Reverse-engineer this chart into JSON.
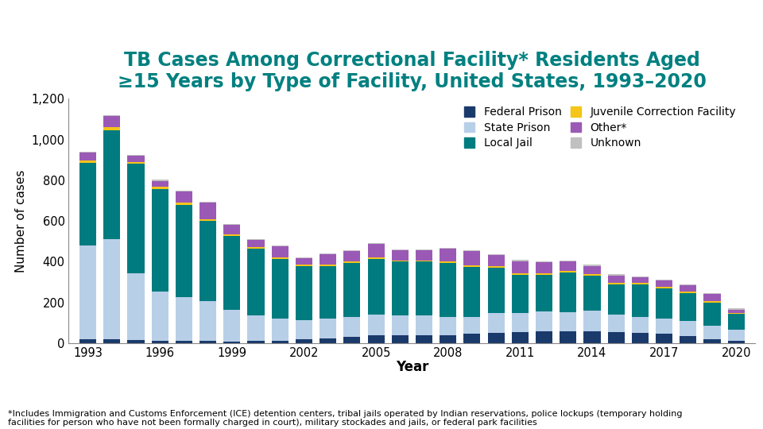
{
  "years": [
    1993,
    1994,
    1995,
    1996,
    1997,
    1998,
    1999,
    2000,
    2001,
    2002,
    2003,
    2004,
    2005,
    2006,
    2007,
    2008,
    2009,
    2010,
    2011,
    2012,
    2013,
    2014,
    2015,
    2016,
    2017,
    2018,
    2019,
    2020
  ],
  "federal_prison": [
    20,
    20,
    15,
    12,
    10,
    10,
    8,
    10,
    10,
    20,
    25,
    30,
    40,
    40,
    40,
    40,
    45,
    50,
    55,
    60,
    58,
    60,
    55,
    50,
    45,
    35,
    20,
    10
  ],
  "state_prison": [
    460,
    490,
    330,
    240,
    215,
    195,
    155,
    125,
    110,
    95,
    95,
    100,
    100,
    95,
    95,
    90,
    85,
    100,
    95,
    95,
    95,
    100,
    85,
    80,
    75,
    75,
    65,
    55
  ],
  "local_jail": [
    405,
    535,
    535,
    505,
    455,
    395,
    365,
    330,
    295,
    265,
    260,
    265,
    275,
    265,
    265,
    265,
    245,
    220,
    185,
    180,
    195,
    170,
    150,
    160,
    150,
    135,
    115,
    80
  ],
  "juvenile_corr": [
    10,
    15,
    10,
    10,
    10,
    10,
    8,
    6,
    6,
    6,
    6,
    6,
    6,
    6,
    6,
    8,
    8,
    8,
    8,
    8,
    8,
    10,
    8,
    8,
    8,
    8,
    5,
    5
  ],
  "other": [
    40,
    55,
    30,
    30,
    55,
    80,
    45,
    35,
    55,
    30,
    50,
    50,
    65,
    50,
    50,
    60,
    70,
    55,
    60,
    55,
    45,
    40,
    35,
    25,
    30,
    30,
    35,
    15
  ],
  "unknown": [
    5,
    5,
    5,
    5,
    5,
    5,
    5,
    5,
    5,
    5,
    5,
    5,
    5,
    5,
    5,
    5,
    5,
    5,
    5,
    5,
    5,
    5,
    5,
    5,
    5,
    5,
    5,
    5
  ],
  "colors": {
    "federal_prison": "#1a3a6b",
    "state_prison": "#b8cfe8",
    "local_jail": "#007b7f",
    "juvenile_corr": "#f5c518",
    "other": "#9b59b6",
    "unknown": "#c0c0c0"
  },
  "legend_labels_left": [
    "Federal Prison",
    "Local Jail",
    "Other*"
  ],
  "legend_labels_right": [
    "State Prison",
    "Juvenile Correction Facility",
    "Unknown"
  ],
  "legend_colors_left": [
    "#1a3a6b",
    "#007b7f",
    "#9b59b6"
  ],
  "legend_colors_right": [
    "#b8cfe8",
    "#f5c518",
    "#c0c0c0"
  ],
  "title_line1": "TB Cases Among Correctional Facility",
  "title_star": "*",
  "title_line1b": " Residents Aged",
  "title_line2": "≥15 Years by Type of Facility, United States, 1993–2020",
  "ylabel": "Number of cases",
  "xlabel": "Year",
  "ylim": [
    0,
    1200
  ],
  "yticks": [
    0,
    200,
    400,
    600,
    800,
    1000,
    1200
  ],
  "xtick_years": [
    1993,
    1996,
    1999,
    2002,
    2005,
    2008,
    2011,
    2014,
    2017,
    2020
  ],
  "footnote": "*Includes Immigration and Customs Enforcement (ICE) detention centers, tribal jails operated by Indian reservations, police lockups (temporary holding\nfacilities for person who have not been formally charged in court), military stockades and jails, or federal park facilities",
  "title_color": "#008080",
  "background_color": "#FFFFFF",
  "title_fontsize": 17,
  "axis_fontsize": 10.5,
  "ylabel_fontsize": 11,
  "xlabel_fontsize": 12,
  "legend_fontsize": 10,
  "footnote_fontsize": 8
}
